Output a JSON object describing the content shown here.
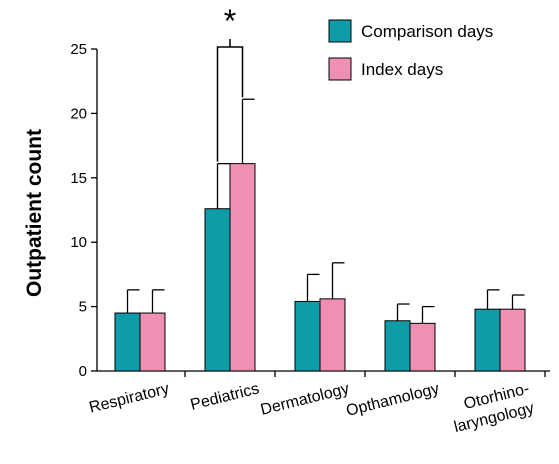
{
  "chart_data": {
    "type": "bar",
    "title": "",
    "xlabel": "",
    "ylabel": "Outpatient count",
    "ylim": [
      0,
      25
    ],
    "yticks": [
      "0",
      "5",
      "10",
      "15",
      "20",
      "25"
    ],
    "categories": [
      {
        "lines": [
          "Respiratory"
        ]
      },
      {
        "lines": [
          "Pediatrics"
        ]
      },
      {
        "lines": [
          "Dermatology"
        ]
      },
      {
        "lines": [
          "Opthamology"
        ]
      },
      {
        "lines": [
          "Otorhino-",
          "laryngology"
        ]
      }
    ],
    "series": [
      {
        "name": "Comparison days",
        "color": "#0f9ba7",
        "values": [
          4.5,
          12.6,
          5.4,
          3.9,
          4.8
        ],
        "errors": [
          1.8,
          3.5,
          2.1,
          1.3,
          1.5
        ]
      },
      {
        "name": "Index days",
        "color": "#ef8fb4",
        "values": [
          4.5,
          16.1,
          5.6,
          3.7,
          4.8
        ],
        "errors": [
          1.8,
          5.0,
          2.8,
          1.3,
          1.1
        ]
      }
    ],
    "legend_position": "top-right",
    "grid": false,
    "annotations": [
      {
        "text": "*",
        "category_index": 1,
        "type": "significance-bracket"
      }
    ]
  }
}
